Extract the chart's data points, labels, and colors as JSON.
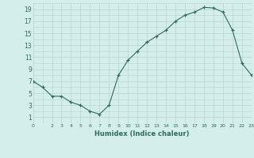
{
  "x": [
    0,
    1,
    2,
    3,
    4,
    5,
    6,
    7,
    8,
    9,
    10,
    11,
    12,
    13,
    14,
    15,
    16,
    17,
    18,
    19,
    20,
    21,
    22,
    23
  ],
  "y": [
    7,
    6,
    4.5,
    4.5,
    3.5,
    3,
    2,
    1.5,
    3,
    8,
    10.5,
    12,
    13.5,
    14.5,
    15.5,
    17,
    18,
    18.5,
    19.3,
    19.2,
    18.5,
    15.5,
    10,
    8
  ],
  "xlabel": "Humidex (Indice chaleur)",
  "xlim": [
    0,
    23
  ],
  "ylim": [
    0,
    20
  ],
  "yticks": [
    1,
    3,
    5,
    7,
    9,
    11,
    13,
    15,
    17,
    19
  ],
  "xticks": [
    0,
    2,
    3,
    4,
    5,
    6,
    7,
    8,
    9,
    10,
    11,
    12,
    13,
    14,
    15,
    16,
    17,
    18,
    19,
    20,
    21,
    22,
    23
  ],
  "line_color": "#2e6b5e",
  "marker": "+",
  "bg_color": "#d4eeec",
  "grid_color": "#b8d4d0",
  "facecolor": "#d4eeec"
}
